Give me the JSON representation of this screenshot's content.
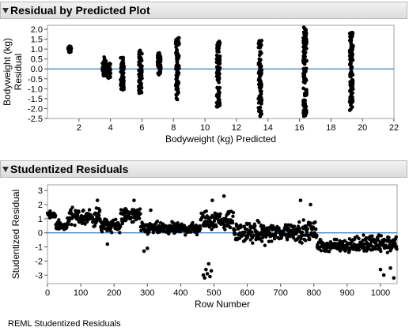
{
  "sections": [
    {
      "title": "Residual by Predicted Plot"
    },
    {
      "title": "Studentized Residuals"
    }
  ],
  "footer": "REML Studentized Residuals",
  "chart_data": [
    {
      "type": "scatter",
      "title": "Residual by Predicted Plot",
      "xlabel": "Bodyweight (kg) Predicted",
      "ylabel": [
        "Bodyweight (kg)",
        "Residual"
      ],
      "xlim": [
        0,
        22
      ],
      "ylim": [
        -2.5,
        2.2
      ],
      "xticks": [
        "2",
        "4",
        "6",
        "8",
        "10",
        "12",
        "14",
        "16",
        "18",
        "20",
        "22"
      ],
      "yticks": [
        "-2.5",
        "-2.0",
        "-1.5",
        "-1.0",
        "-0.5",
        "0.0",
        "0.5",
        "1.0",
        "1.5",
        "2.0"
      ],
      "reference_line": 0,
      "clusters": [
        {
          "x": 1.4,
          "ymin": 0.8,
          "ymax": 1.15
        },
        {
          "x": 3.6,
          "ymin": -0.35,
          "ymax": 0.6
        },
        {
          "x": 3.9,
          "ymin": -0.5,
          "ymax": 0.3
        },
        {
          "x": 4.75,
          "ymin": -1.1,
          "ymax": 0.6
        },
        {
          "x": 5.9,
          "ymin": -1.25,
          "ymax": 0.95
        },
        {
          "x": 7.1,
          "ymin": -0.3,
          "ymax": 0.85
        },
        {
          "x": 8.25,
          "ymin": -1.55,
          "ymax": 1.6
        },
        {
          "x": 10.85,
          "ymin": -1.95,
          "ymax": 1.4
        },
        {
          "x": 13.5,
          "ymin": -2.4,
          "ymax": 1.55
        },
        {
          "x": 16.35,
          "ymin": -2.45,
          "ymax": 2.1
        },
        {
          "x": 19.3,
          "ymin": -2.1,
          "ymax": 1.85
        }
      ]
    },
    {
      "type": "scatter",
      "title": "Studentized Residuals",
      "xlabel": "Row Number",
      "ylabel": "Studentized Residual",
      "xlim": [
        0,
        1050
      ],
      "ylim": [
        -3.6,
        3.4
      ],
      "xticks": [
        "0",
        "100",
        "200",
        "300",
        "400",
        "500",
        "600",
        "700",
        "800",
        "900",
        "1000"
      ],
      "yticks": [
        "-3",
        "-2",
        "-1",
        "0",
        "1",
        "2",
        "3"
      ],
      "reference_line": 0,
      "segments": [
        {
          "x0": 0,
          "x1": 25,
          "mean": 1.3,
          "spread": 0.35
        },
        {
          "x0": 25,
          "x1": 60,
          "mean": 0.5,
          "spread": 0.5
        },
        {
          "x0": 60,
          "x1": 160,
          "mean": 1.1,
          "spread": 0.9
        },
        {
          "x0": 160,
          "x1": 220,
          "mean": 0.5,
          "spread": 0.7
        },
        {
          "x0": 220,
          "x1": 280,
          "mean": 1.2,
          "spread": 0.8
        },
        {
          "x0": 280,
          "x1": 460,
          "mean": 0.3,
          "spread": 0.6
        },
        {
          "x0": 460,
          "x1": 560,
          "mean": 0.9,
          "spread": 0.9
        },
        {
          "x0": 560,
          "x1": 700,
          "mean": 0.0,
          "spread": 1.0
        },
        {
          "x0": 700,
          "x1": 810,
          "mean": 0.1,
          "spread": 1.0
        },
        {
          "x0": 810,
          "x1": 900,
          "mean": -0.9,
          "spread": 0.6
        },
        {
          "x0": 900,
          "x1": 1050,
          "mean": -0.8,
          "spread": 0.9
        }
      ],
      "outliers": [
        {
          "x": 468,
          "y": -3.0
        },
        {
          "x": 472,
          "y": -3.2
        },
        {
          "x": 476,
          "y": -2.6
        },
        {
          "x": 480,
          "y": -2.9
        },
        {
          "x": 484,
          "y": -2.2
        },
        {
          "x": 488,
          "y": -3.1
        },
        {
          "x": 492,
          "y": -2.7
        },
        {
          "x": 530,
          "y": 2.6
        },
        {
          "x": 495,
          "y": 2.3
        },
        {
          "x": 760,
          "y": 2.3
        },
        {
          "x": 790,
          "y": 2.0
        },
        {
          "x": 1010,
          "y": -3.0
        },
        {
          "x": 1040,
          "y": -3.2
        },
        {
          "x": 1030,
          "y": -2.5
        },
        {
          "x": 1000,
          "y": -2.6
        },
        {
          "x": 180,
          "y": -0.8
        },
        {
          "x": 290,
          "y": -1.3
        },
        {
          "x": 300,
          "y": -1.1
        },
        {
          "x": 310,
          "y": 1.6
        },
        {
          "x": 150,
          "y": 2.3
        },
        {
          "x": 260,
          "y": 2.3
        }
      ]
    }
  ]
}
